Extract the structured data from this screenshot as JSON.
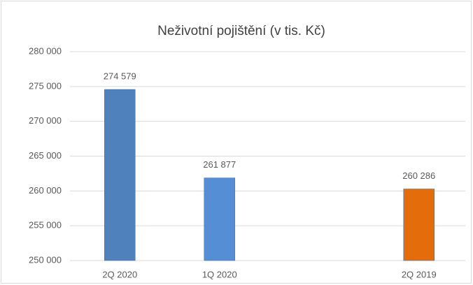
{
  "chart_data": {
    "type": "bar",
    "title": "Neživotní pojištění (v tis. Kč)",
    "categories": [
      "2Q 2020",
      "1Q 2020",
      null,
      "2Q 2019"
    ],
    "values": [
      274579,
      261877,
      null,
      260286
    ],
    "value_labels": [
      "274 579",
      "261 877",
      null,
      "260 286"
    ],
    "colors": [
      "#4f81bd",
      "#558ed5",
      null,
      "#e46c0a"
    ],
    "ylim": [
      250000,
      280000
    ],
    "yticks": [
      {
        "value": 250000,
        "label": "250 000"
      },
      {
        "value": 255000,
        "label": "255 000"
      },
      {
        "value": 260000,
        "label": "260 000"
      },
      {
        "value": 265000,
        "label": "265 000"
      },
      {
        "value": 270000,
        "label": "270 000"
      },
      {
        "value": 275000,
        "label": "275 000"
      },
      {
        "value": 280000,
        "label": "280 000"
      }
    ],
    "grid": true
  }
}
